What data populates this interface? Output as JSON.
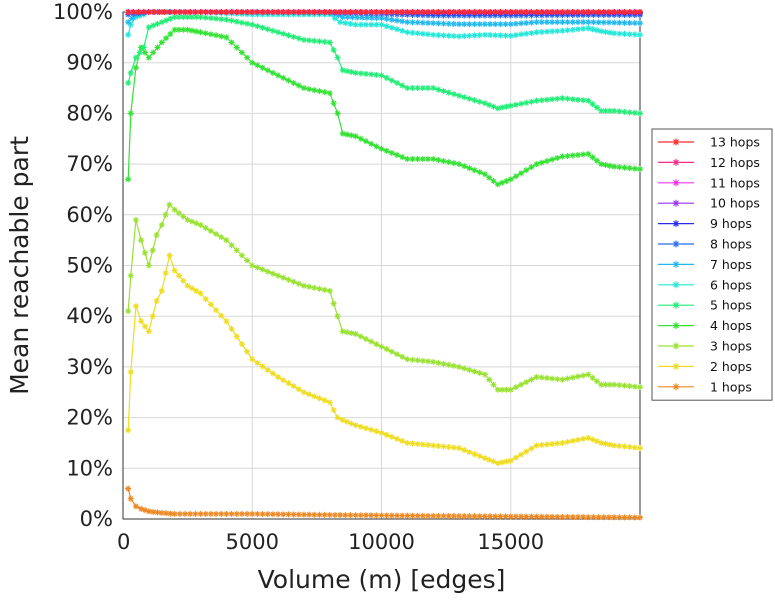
{
  "chart_data": {
    "type": "line",
    "xlabel": "Volume (m) [edges]",
    "ylabel": "Mean reachable part",
    "xlim": [
      0,
      20000
    ],
    "ylim": [
      0,
      100
    ],
    "xticks": [
      0,
      5000,
      10000,
      15000
    ],
    "xtick_labels": [
      "0",
      "5000",
      "10000",
      "15000"
    ],
    "yticks": [
      0,
      10,
      20,
      30,
      40,
      50,
      60,
      70,
      80,
      90,
      100
    ],
    "ytick_labels": [
      "0%",
      "10%",
      "20%",
      "30%",
      "40%",
      "50%",
      "60%",
      "70%",
      "80%",
      "90%",
      "100%"
    ],
    "grid": true,
    "legend_position": "right",
    "marker": "star",
    "series": [
      {
        "name": "13 hops",
        "color": "#ff2a2a",
        "x": [
          200,
          1000,
          2000,
          5000,
          10000,
          15000,
          20000
        ],
        "y": [
          100,
          100,
          100,
          100,
          100,
          100,
          100
        ]
      },
      {
        "name": "12 hops",
        "color": "#ff2a8a",
        "x": [
          200,
          1000,
          2000,
          5000,
          10000,
          15000,
          20000
        ],
        "y": [
          100,
          100,
          100,
          100,
          100,
          100,
          100
        ]
      },
      {
        "name": "11 hops",
        "color": "#ee33ee",
        "x": [
          200,
          1000,
          2000,
          5000,
          10000,
          15000,
          20000
        ],
        "y": [
          100,
          100,
          100,
          100,
          100,
          100,
          100
        ]
      },
      {
        "name": "10 hops",
        "color": "#9933ee",
        "x": [
          200,
          1000,
          2000,
          5000,
          10000,
          15000,
          20000
        ],
        "y": [
          100,
          100,
          100,
          100,
          100,
          100,
          100
        ]
      },
      {
        "name": "9 hops",
        "color": "#2a2aee",
        "x": [
          200,
          1000,
          2000,
          5000,
          10000,
          12000,
          15000,
          20000
        ],
        "y": [
          100,
          100,
          100,
          100,
          100,
          99.8,
          99.8,
          99.8
        ]
      },
      {
        "name": "8 hops",
        "color": "#2a6aee",
        "x": [
          200,
          1000,
          2000,
          5000,
          8000,
          10000,
          12000,
          15000,
          18000,
          20000
        ],
        "y": [
          99.5,
          100,
          100,
          100,
          99.9,
          99.6,
          99.3,
          99.3,
          99.4,
          99.4
        ]
      },
      {
        "name": "7 hops",
        "color": "#22b8ee",
        "x": [
          200,
          500,
          1000,
          2000,
          5000,
          8000,
          8500,
          10000,
          11000,
          13000,
          15000,
          16000,
          18000,
          20000
        ],
        "y": [
          98,
          99.5,
          100,
          100,
          100,
          100,
          99,
          98.8,
          98,
          97.6,
          97.6,
          98,
          98,
          97.8
        ]
      },
      {
        "name": "6 hops",
        "color": "#22e8d8",
        "x": [
          200,
          300,
          500,
          800,
          1000,
          1500,
          2000,
          3000,
          5000,
          7000,
          8000,
          8400,
          9000,
          10000,
          11000,
          12000,
          13000,
          14000,
          15000,
          16000,
          17000,
          18000,
          18500,
          19000,
          20000
        ],
        "y": [
          95.5,
          97.5,
          99,
          99.5,
          100,
          100,
          100,
          100,
          99.5,
          99.5,
          99.5,
          98,
          97.5,
          97.5,
          96,
          95.5,
          95.2,
          95.5,
          95.3,
          96,
          96.3,
          96.8,
          96.2,
          95.8,
          95.5
        ]
      },
      {
        "name": "5 hops",
        "color": "#22ee77",
        "x": [
          200,
          300,
          500,
          800,
          1000,
          1500,
          2000,
          2500,
          3000,
          4000,
          5000,
          6000,
          7000,
          8000,
          8300,
          8500,
          9000,
          10000,
          11000,
          12000,
          13000,
          14000,
          14500,
          15000,
          16000,
          17000,
          18000,
          18500,
          19000,
          20000
        ],
        "y": [
          86,
          88,
          91,
          93,
          97,
          98,
          99,
          99,
          99,
          98.5,
          97.5,
          96,
          94.5,
          94,
          91,
          88.5,
          88,
          87.5,
          85,
          85,
          83.5,
          82,
          81,
          81.5,
          82.5,
          83,
          82.5,
          80.5,
          80.5,
          80
        ]
      },
      {
        "name": "4 hops",
        "color": "#33e233",
        "x": [
          200,
          300,
          500,
          700,
          1000,
          1500,
          2000,
          2500,
          3000,
          4000,
          5000,
          6000,
          7000,
          8000,
          8300,
          8500,
          9000,
          10000,
          11000,
          12000,
          13000,
          14000,
          14500,
          15000,
          16000,
          17000,
          18000,
          18500,
          19000,
          20000
        ],
        "y": [
          67,
          80,
          89,
          93,
          91,
          94,
          96.5,
          96.5,
          96,
          95,
          90,
          87.5,
          85,
          84,
          80,
          76,
          75.5,
          73,
          71,
          71,
          70,
          68,
          66,
          67,
          70,
          71.5,
          72,
          70,
          69.5,
          69
        ]
      },
      {
        "name": "3 hops",
        "color": "#99e233",
        "x": [
          200,
          300,
          500,
          700,
          1000,
          1300,
          1500,
          1800,
          2000,
          2500,
          3000,
          4000,
          5000,
          6000,
          7000,
          8000,
          8300,
          8500,
          9000,
          10000,
          11000,
          12000,
          13000,
          14000,
          14500,
          15000,
          16000,
          17000,
          18000,
          18500,
          19000,
          20000
        ],
        "y": [
          41,
          48,
          59,
          55,
          50,
          56,
          58,
          62,
          61,
          59,
          58,
          55,
          50,
          48,
          46,
          45,
          40,
          37,
          36.5,
          34,
          31.5,
          31,
          30,
          28.5,
          25.5,
          25.5,
          28,
          27.5,
          28.5,
          26.5,
          26.5,
          26
        ]
      },
      {
        "name": "2 hops",
        "color": "#eedd22",
        "x": [
          200,
          300,
          500,
          700,
          1000,
          1300,
          1500,
          1800,
          2000,
          2500,
          3000,
          4000,
          5000,
          6000,
          7000,
          8000,
          8300,
          8500,
          9000,
          10000,
          11000,
          12000,
          13000,
          14000,
          14500,
          15000,
          16000,
          17000,
          18000,
          18500,
          19000,
          20000
        ],
        "y": [
          17.5,
          29,
          42,
          39,
          37,
          43,
          45,
          52,
          49,
          46,
          44.5,
          39,
          31.5,
          28,
          25,
          23,
          20,
          19.5,
          18.5,
          17,
          15,
          14.5,
          14,
          12,
          11,
          11.5,
          14.5,
          15,
          16,
          15,
          14.5,
          14
        ]
      },
      {
        "name": "1 hops",
        "color": "#ee8822",
        "x": [
          200,
          300,
          500,
          700,
          1000,
          1500,
          2000,
          3000,
          5000,
          8000,
          10000,
          15000,
          20000
        ],
        "y": [
          6,
          4,
          2.5,
          2,
          1.5,
          1.2,
          1,
          1,
          1,
          0.8,
          0.7,
          0.5,
          0.3
        ]
      }
    ]
  }
}
